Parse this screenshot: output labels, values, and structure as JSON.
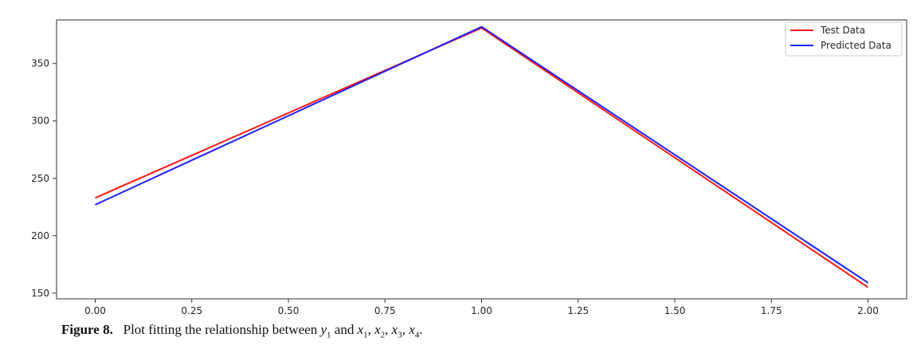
{
  "chart_data": {
    "type": "line",
    "title": "",
    "xlabel": "",
    "ylabel": "",
    "x": [
      0,
      1,
      2
    ],
    "xlim": [
      -0.1,
      2.1
    ],
    "ylim": [
      145,
      388
    ],
    "x_ticks": [
      0,
      0.25,
      0.5,
      0.75,
      1,
      1.25,
      1.5,
      1.75,
      2
    ],
    "x_tick_labels": [
      "0.00",
      "0.25",
      "0.50",
      "0.75",
      "1.00",
      "1.25",
      "1.50",
      "1.75",
      "2.00"
    ],
    "y_ticks": [
      150,
      200,
      250,
      300,
      350
    ],
    "y_tick_labels": [
      "150",
      "200",
      "250",
      "300",
      "350"
    ],
    "grid": false,
    "legend_position": "top-right",
    "series": [
      {
        "name": "Test Data",
        "color": "#ff1a1a",
        "values": [
          233,
          381,
          155
        ]
      },
      {
        "name": "Predicted Data",
        "color": "#1f1fff",
        "values": [
          227,
          382,
          159
        ]
      }
    ]
  },
  "caption": {
    "label": "Figure 8.",
    "text_before": "Plot fitting the relationship between",
    "y_var": "y",
    "y_sub": "1",
    "connector": "and",
    "x_vars": [
      {
        "var": "x",
        "sub": "1"
      },
      {
        "var": "x",
        "sub": "2"
      },
      {
        "var": "x",
        "sub": "3"
      },
      {
        "var": "x",
        "sub": "4"
      }
    ]
  }
}
